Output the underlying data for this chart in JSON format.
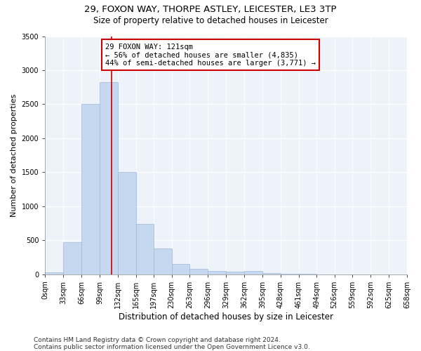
{
  "title_line1": "29, FOXON WAY, THORPE ASTLEY, LEICESTER, LE3 3TP",
  "title_line2": "Size of property relative to detached houses in Leicester",
  "xlabel": "Distribution of detached houses by size in Leicester",
  "ylabel": "Number of detached properties",
  "bin_edges": [
    0,
    33,
    66,
    99,
    132,
    165,
    197,
    230,
    263,
    296,
    329,
    362,
    395,
    428,
    461,
    494,
    526,
    559,
    592,
    625,
    658
  ],
  "bar_heights": [
    25,
    470,
    2500,
    2820,
    1500,
    740,
    380,
    150,
    75,
    50,
    40,
    50,
    20,
    10,
    5,
    0,
    0,
    0,
    0,
    0
  ],
  "bar_color": "#c5d8f0",
  "bar_edgecolor": "#a0b8d8",
  "vline_x": 121,
  "vline_color": "#cc0000",
  "annotation_text": "29 FOXON WAY: 121sqm\n← 56% of detached houses are smaller (4,835)\n44% of semi-detached houses are larger (3,771) →",
  "annotation_box_color": "white",
  "annotation_box_edgecolor": "#cc0000",
  "ylim": [
    0,
    3500
  ],
  "yticks": [
    0,
    500,
    1000,
    1500,
    2000,
    2500,
    3000,
    3500
  ],
  "background_color": "#ffffff",
  "plot_background": "#eef3fa",
  "grid_color": "white",
  "footnote1": "Contains HM Land Registry data © Crown copyright and database right 2024.",
  "footnote2": "Contains public sector information licensed under the Open Government Licence v3.0.",
  "title_fontsize": 9.5,
  "subtitle_fontsize": 8.5,
  "xlabel_fontsize": 8.5,
  "ylabel_fontsize": 8,
  "tick_fontsize": 7,
  "annot_fontsize": 7.5,
  "footnote_fontsize": 6.5
}
